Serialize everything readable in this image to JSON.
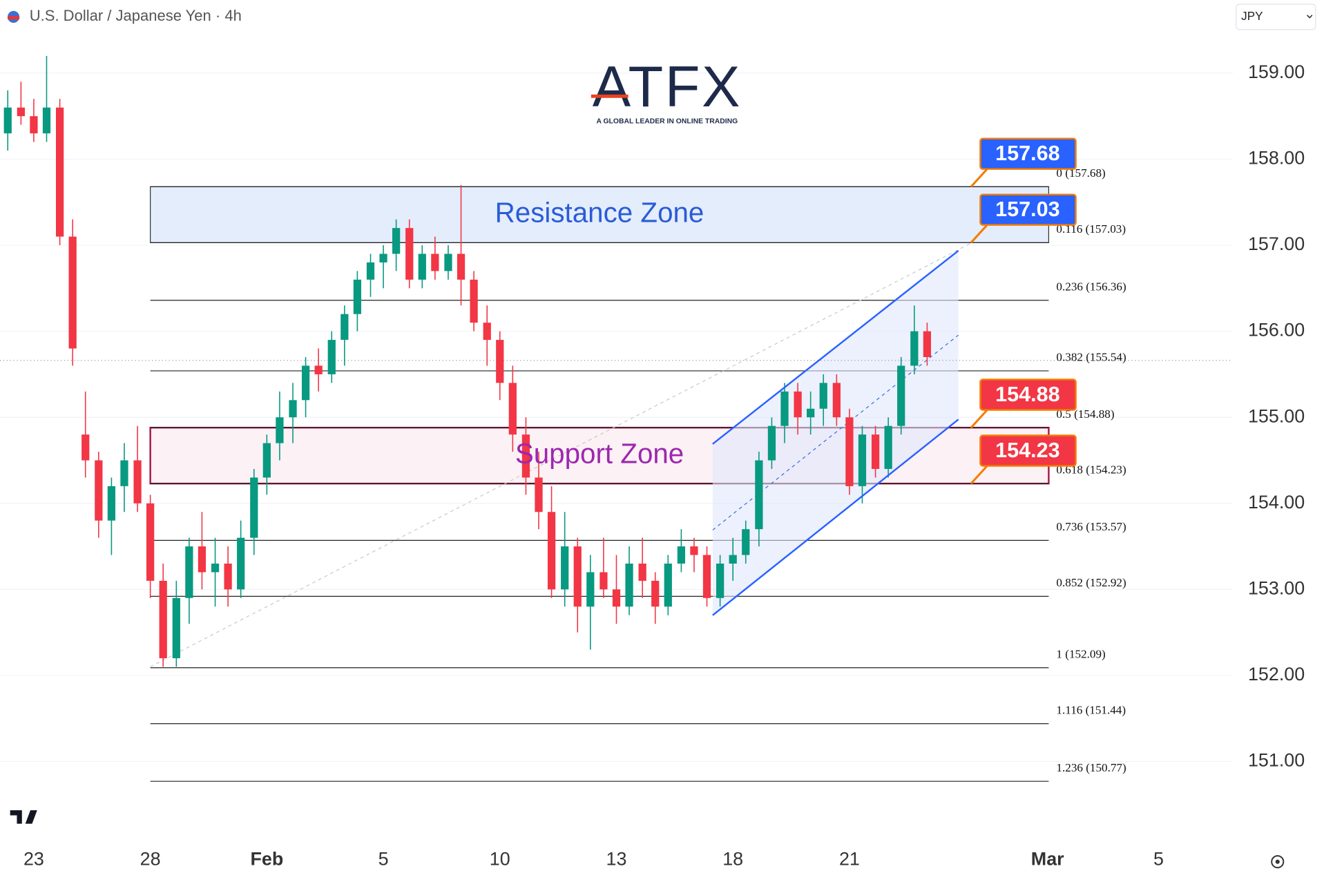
{
  "header": {
    "symbol": "U.S. Dollar / Japanese Yen · 4h",
    "currency": "JPY"
  },
  "logo": {
    "name": "ATFX",
    "tagline": "A GLOBAL LEADER IN ONLINE TRADING"
  },
  "chart_data": {
    "type": "candlestick",
    "x": [
      -0.67,
      -0.33,
      0,
      0.33,
      0.67,
      1,
      1.33,
      1.67,
      2,
      2.33,
      2.67,
      3,
      3.33,
      3.67,
      4,
      4.33,
      4.67,
      5,
      5.33,
      5.67,
      6,
      6.33,
      6.67,
      7,
      7.33,
      7.67,
      8,
      8.33,
      8.67,
      9,
      9.33,
      9.67,
      10,
      10.33,
      10.67,
      11,
      11.33,
      11.67,
      12,
      12.33,
      12.67,
      13,
      13.33,
      13.67,
      14,
      14.33,
      14.67,
      15,
      15.33,
      15.67,
      16,
      16.33,
      16.67,
      17,
      17.33,
      17.67,
      18,
      18.33,
      18.67,
      19,
      19.33,
      19.67,
      20,
      20.33,
      20.67,
      21,
      21.33,
      21.67,
      22,
      22.33,
      22.67,
      23
    ],
    "open": [
      158.3,
      158.6,
      158.5,
      158.3,
      158.6,
      157.1,
      154.8,
      154.5,
      153.8,
      154.2,
      154.5,
      154.0,
      153.1,
      152.2,
      152.9,
      153.5,
      153.2,
      153.3,
      153.0,
      153.6,
      154.3,
      154.7,
      155.0,
      155.2,
      155.6,
      155.5,
      155.9,
      156.2,
      156.6,
      156.8,
      156.9,
      157.2,
      156.6,
      156.9,
      156.7,
      156.9,
      156.6,
      156.1,
      155.9,
      155.4,
      154.8,
      154.3,
      153.9,
      153.0,
      153.5,
      152.8,
      153.2,
      153.0,
      152.8,
      153.3,
      153.1,
      152.8,
      153.3,
      153.5,
      153.4,
      152.9,
      153.3,
      153.4,
      153.7,
      154.5,
      154.9,
      155.3,
      155.0,
      155.1,
      155.4,
      155.0,
      154.2,
      154.8,
      154.4,
      154.9,
      155.6,
      156.0
    ],
    "high": [
      158.8,
      158.9,
      158.7,
      159.2,
      158.7,
      157.3,
      155.3,
      154.6,
      154.3,
      154.7,
      154.9,
      154.1,
      153.3,
      153.1,
      153.6,
      153.9,
      153.6,
      153.5,
      153.8,
      154.4,
      154.8,
      155.3,
      155.4,
      155.7,
      155.8,
      156.0,
      156.3,
      156.7,
      156.9,
      157.0,
      157.3,
      157.3,
      157.0,
      157.1,
      157.0,
      157.7,
      156.7,
      156.3,
      156.0,
      155.6,
      155.0,
      154.6,
      154.2,
      153.9,
      153.6,
      153.4,
      153.6,
      153.4,
      153.5,
      153.6,
      153.2,
      153.4,
      153.7,
      153.6,
      153.5,
      153.4,
      153.6,
      153.8,
      154.6,
      155.0,
      155.4,
      155.4,
      155.3,
      155.5,
      155.5,
      155.1,
      154.9,
      154.9,
      155.0,
      155.7,
      156.3,
      156.1
    ],
    "low": [
      158.1,
      158.4,
      158.2,
      158.2,
      157.0,
      155.6,
      154.3,
      153.6,
      153.4,
      153.9,
      153.9,
      152.9,
      152.1,
      152.1,
      152.6,
      153.0,
      152.8,
      152.8,
      152.9,
      153.4,
      154.1,
      154.5,
      154.7,
      155.0,
      155.3,
      155.4,
      155.6,
      156.0,
      156.4,
      156.5,
      156.7,
      156.5,
      156.5,
      156.6,
      156.6,
      156.3,
      156.0,
      155.6,
      155.2,
      154.6,
      154.1,
      153.7,
      152.9,
      152.8,
      152.5,
      152.3,
      152.9,
      152.6,
      152.7,
      152.9,
      152.6,
      152.7,
      153.2,
      153.2,
      152.8,
      152.8,
      153.1,
      153.3,
      153.5,
      154.4,
      154.7,
      154.8,
      154.8,
      154.9,
      154.9,
      154.1,
      154.0,
      154.3,
      154.3,
      154.8,
      155.5,
      155.6
    ],
    "close": [
      158.6,
      158.5,
      158.3,
      158.6,
      157.1,
      155.8,
      154.5,
      153.8,
      154.2,
      154.5,
      154.0,
      153.1,
      152.2,
      152.9,
      153.5,
      153.2,
      153.3,
      153.0,
      153.6,
      154.3,
      154.7,
      155.0,
      155.2,
      155.6,
      155.5,
      155.9,
      156.2,
      156.6,
      156.8,
      156.9,
      157.2,
      156.6,
      156.9,
      156.7,
      156.9,
      156.6,
      156.1,
      155.9,
      155.4,
      154.8,
      154.3,
      153.9,
      153.0,
      153.5,
      152.8,
      153.2,
      153.0,
      152.8,
      153.3,
      153.1,
      152.8,
      153.3,
      153.5,
      153.4,
      152.9,
      153.3,
      153.4,
      153.7,
      154.5,
      154.9,
      155.3,
      155.0,
      155.1,
      155.4,
      155.0,
      154.2,
      154.8,
      154.4,
      154.9,
      155.6,
      156.0,
      155.7
    ],
    "colors": {
      "up": "#089981",
      "down": "#f23645"
    },
    "xlim": [
      -0.87,
      30.87
    ],
    "xticks": [
      {
        "value": 0,
        "label": "23"
      },
      {
        "value": 3,
        "label": "28"
      },
      {
        "value": 6,
        "label": "Feb"
      },
      {
        "value": 9,
        "label": "5"
      },
      {
        "value": 12,
        "label": "10"
      },
      {
        "value": 15,
        "label": "13"
      },
      {
        "value": 18,
        "label": "18"
      },
      {
        "value": 21,
        "label": "21"
      },
      {
        "value": 26.1,
        "label": "Mar"
      },
      {
        "value": 28.96,
        "label": "5"
      }
    ],
    "ylim": [
      150.09,
      159.85
    ],
    "yticks": [
      {
        "value": 151,
        "label": "151.00"
      },
      {
        "value": 152,
        "label": "152.00"
      },
      {
        "value": 153,
        "label": "153.00"
      },
      {
        "value": 154,
        "label": "154.00"
      },
      {
        "value": 155,
        "label": "155.00"
      },
      {
        "value": 156,
        "label": "156.00"
      },
      {
        "value": 157,
        "label": "157.00"
      },
      {
        "value": 158,
        "label": "158.00"
      },
      {
        "value": 159,
        "label": "159.00"
      }
    ],
    "grid": true,
    "zones": [
      {
        "name": "Resistance Zone",
        "top": 157.68,
        "bottom": 157.03,
        "fill": "#e3edfc",
        "border": "#333333",
        "text_color": "#2a5bd7"
      },
      {
        "name": "Support Zone",
        "top": 154.88,
        "bottom": 154.23,
        "fill": "#fcf1f4",
        "border": "#a8164a",
        "text_color": "#9c27b0"
      }
    ],
    "fib_levels": [
      {
        "value": 157.68,
        "label": "0 (157.68)"
      },
      {
        "value": 157.03,
        "label": "0.116 (157.03)"
      },
      {
        "value": 156.36,
        "label": "0.236 (156.36)"
      },
      {
        "value": 155.54,
        "label": "0.382 (155.54)"
      },
      {
        "value": 154.88,
        "label": "0.5 (154.88)"
      },
      {
        "value": 154.23,
        "label": "0.618 (154.23)"
      },
      {
        "value": 153.57,
        "label": "0.736 (153.57)"
      },
      {
        "value": 152.92,
        "label": "0.852 (152.92)"
      },
      {
        "value": 152.09,
        "label": "1 (152.09)"
      },
      {
        "value": 151.44,
        "label": "1.116 (151.44)"
      },
      {
        "value": 150.77,
        "label": "1.236 (150.77)"
      }
    ],
    "price_labels": [
      {
        "value": 157.68,
        "color": "#2962ff"
      },
      {
        "value": 157.03,
        "color": "#2962ff"
      },
      {
        "value": 154.88,
        "color": "#f23645"
      },
      {
        "value": 154.23,
        "color": "#f23645"
      }
    ]
  }
}
